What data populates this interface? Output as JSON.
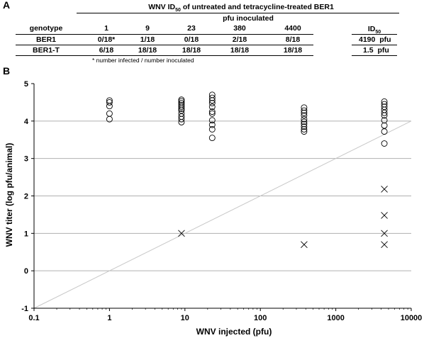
{
  "panel_a": {
    "label": "A",
    "title_pre": "WNV ID",
    "title_sub": "50",
    "title_post": " of untreated and tetracycline-treated BER1",
    "pfu_header": "pfu inoculated",
    "genotype_header": "genotype",
    "doses": [
      "1",
      "9",
      "23",
      "380",
      "4400"
    ],
    "id50_header_pre": "ID",
    "id50_header_sub": "50",
    "rows": [
      {
        "genotype": "BER1",
        "values": [
          "0/18*",
          "1/18",
          "0/18",
          "2/18",
          "8/18"
        ],
        "id50": "4190",
        "unit": "pfu"
      },
      {
        "genotype": "BER1-T",
        "values": [
          "6/18",
          "18/18",
          "18/18",
          "18/18",
          "18/18"
        ],
        "id50": "1.5",
        "unit": "pfu"
      }
    ],
    "footnote": "* number infected / number inoculated"
  },
  "panel_b": {
    "label": "B"
  },
  "chart_data": {
    "type": "scatter",
    "xlabel": "WNV injected (pfu)",
    "ylabel": "WNV titer (log pfu/animal)",
    "xscale": "log",
    "xlim": [
      0.1,
      10000
    ],
    "ylim": [
      -1,
      5
    ],
    "xticks": [
      "0.1",
      "1",
      "10",
      "100",
      "1000",
      "10000"
    ],
    "yticks": [
      "-1",
      "0",
      "1",
      "2",
      "3",
      "4",
      "5"
    ],
    "grid": "horizontal",
    "reference_line": {
      "x": [
        0.1,
        10000
      ],
      "y": [
        -1,
        4
      ]
    },
    "series": [
      {
        "marker": "circle",
        "points": [
          [
            1,
            4.55
          ],
          [
            1,
            4.5
          ],
          [
            1,
            4.4
          ],
          [
            1,
            4.2
          ],
          [
            1,
            4.05
          ],
          [
            9,
            4.57
          ],
          [
            9,
            4.53
          ],
          [
            9,
            4.48
          ],
          [
            9,
            4.43
          ],
          [
            9,
            4.38
          ],
          [
            9,
            4.33
          ],
          [
            9,
            4.28
          ],
          [
            9,
            4.2
          ],
          [
            9,
            4.12
          ],
          [
            9,
            4.05
          ],
          [
            9,
            3.97
          ],
          [
            23,
            4.7
          ],
          [
            23,
            4.62
          ],
          [
            23,
            4.55
          ],
          [
            23,
            4.48
          ],
          [
            23,
            4.38
          ],
          [
            23,
            4.25
          ],
          [
            23,
            4.2
          ],
          [
            23,
            4.02
          ],
          [
            23,
            3.9
          ],
          [
            23,
            3.78
          ],
          [
            23,
            3.55
          ],
          [
            380,
            4.36
          ],
          [
            380,
            4.28
          ],
          [
            380,
            4.22
          ],
          [
            380,
            4.15
          ],
          [
            380,
            4.05
          ],
          [
            380,
            3.98
          ],
          [
            380,
            3.92
          ],
          [
            380,
            3.85
          ],
          [
            380,
            3.78
          ],
          [
            380,
            3.72
          ],
          [
            4400,
            4.52
          ],
          [
            4400,
            4.45
          ],
          [
            4400,
            4.38
          ],
          [
            4400,
            4.3
          ],
          [
            4400,
            4.22
          ],
          [
            4400,
            4.15
          ],
          [
            4400,
            4.02
          ],
          [
            4400,
            3.88
          ],
          [
            4400,
            3.72
          ],
          [
            4400,
            3.4
          ]
        ]
      },
      {
        "marker": "cross",
        "points": [
          [
            9,
            1.0
          ],
          [
            380,
            0.7
          ],
          [
            4400,
            2.18
          ],
          [
            4400,
            1.48
          ],
          [
            4400,
            1.0
          ],
          [
            4400,
            0.7
          ]
        ]
      }
    ]
  }
}
